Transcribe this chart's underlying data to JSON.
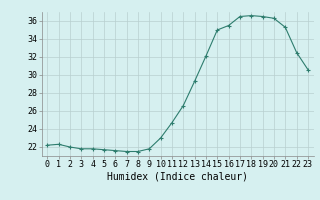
{
  "x": [
    0,
    1,
    2,
    3,
    4,
    5,
    6,
    7,
    8,
    9,
    10,
    11,
    12,
    13,
    14,
    15,
    16,
    17,
    18,
    19,
    20,
    21,
    22,
    23
  ],
  "y": [
    22.2,
    22.3,
    22.0,
    21.8,
    21.8,
    21.7,
    21.6,
    21.5,
    21.5,
    21.8,
    23.0,
    24.7,
    26.6,
    29.3,
    32.1,
    35.0,
    35.5,
    36.5,
    36.6,
    36.5,
    36.3,
    35.3,
    32.5,
    30.6
  ],
  "line_color": "#2e7d6e",
  "marker": "+",
  "marker_size": 3,
  "bg_color": "#d6f0f0",
  "grid_color": "#b8d0d0",
  "xlabel": "Humidex (Indice chaleur)",
  "ylim": [
    21,
    37
  ],
  "xlim": [
    -0.5,
    23.5
  ],
  "yticks": [
    22,
    24,
    26,
    28,
    30,
    32,
    34,
    36
  ],
  "xticks": [
    0,
    1,
    2,
    3,
    4,
    5,
    6,
    7,
    8,
    9,
    10,
    11,
    12,
    13,
    14,
    15,
    16,
    17,
    18,
    19,
    20,
    21,
    22,
    23
  ],
  "tick_fontsize": 6,
  "xlabel_fontsize": 7,
  "linewidth": 0.8,
  "markeredgewidth": 0.8
}
